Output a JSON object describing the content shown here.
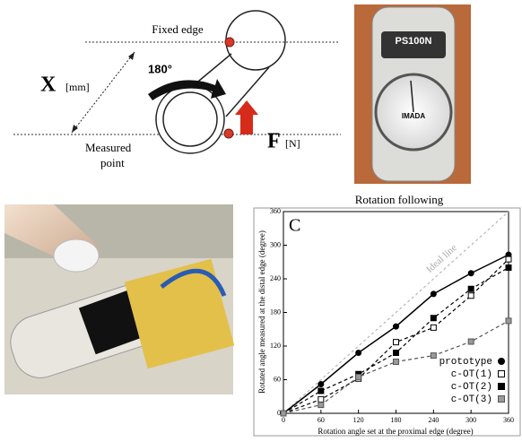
{
  "diagram": {
    "fixed_edge": "Fixed edge",
    "x_symbol": "X",
    "x_unit": "[mm]",
    "angle": "180°",
    "f_symbol": "F",
    "f_unit": "[N]",
    "measured_point": [
      "Measured",
      "point"
    ]
  },
  "gauge_photo": {
    "model": "PS100N",
    "brand": "IMADA"
  },
  "chart_data": {
    "type": "line",
    "panel_label": "C",
    "title": "Rotation following",
    "x_label": "Rotation angle set at the proximal edge (degree)",
    "y_label": "Rotated angle measured at the distal edge (degree)",
    "x": [
      0,
      60,
      120,
      180,
      240,
      300,
      360
    ],
    "xlim": [
      0,
      360
    ],
    "xticks": [
      0,
      60,
      120,
      180,
      240,
      300,
      360
    ],
    "ylim": [
      0,
      360
    ],
    "yticks": [
      0,
      60,
      120,
      180,
      240,
      300,
      360
    ],
    "ideal_line": {
      "label": "Ideal line",
      "color": "#aaaaaa"
    },
    "legend": "lower right",
    "series": [
      {
        "name": "prototype",
        "color": "#000000",
        "marker": "circle",
        "marker_fill": "#000000",
        "line_style": "solid",
        "values": [
          0,
          52,
          108,
          155,
          213,
          250,
          283
        ]
      },
      {
        "name": "c-OT(1)",
        "color": "#000000",
        "marker": "square",
        "marker_fill": "#ffffff",
        "line_style": "dashed",
        "values": [
          0,
          25,
          62,
          127,
          153,
          210,
          275
        ]
      },
      {
        "name": "c-OT(2)",
        "color": "#000000",
        "marker": "square",
        "marker_fill": "#000000",
        "line_style": "dashed",
        "values": [
          0,
          40,
          70,
          108,
          170,
          222,
          260
        ]
      },
      {
        "name": "c-OT(3)",
        "color": "#555555",
        "marker": "square",
        "marker_fill": "#999999",
        "line_style": "dashed",
        "values": [
          0,
          15,
          65,
          92,
          103,
          128,
          165
        ]
      }
    ]
  }
}
